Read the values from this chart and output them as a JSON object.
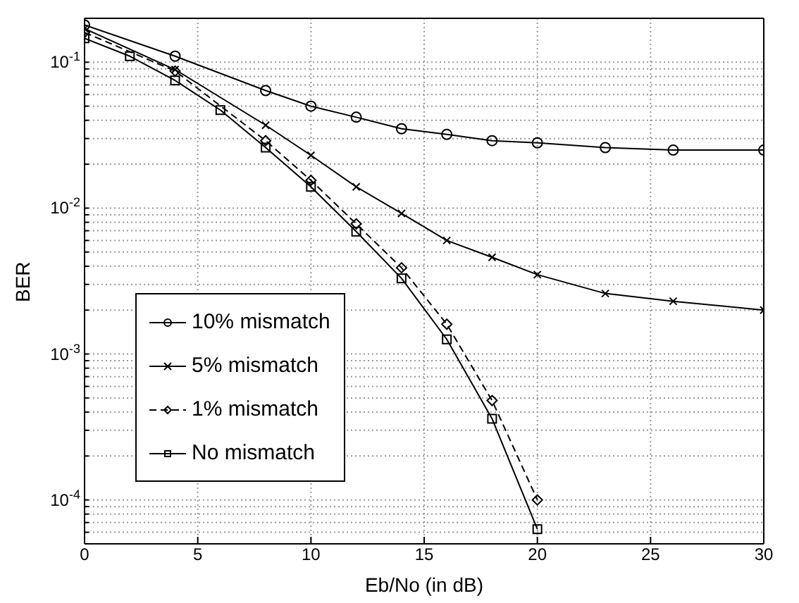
{
  "chart_data": {
    "type": "line",
    "xlabel": "Eb/No (in dB)",
    "ylabel": "BER",
    "log": "y",
    "grid": true,
    "legend": "bottom left",
    "xlim": [
      0,
      30
    ],
    "xticks": [
      0,
      5,
      10,
      15,
      20,
      25,
      30
    ],
    "ylim": [
      5e-05,
      0.2
    ],
    "yticks": [
      {
        "value": 5e-05,
        "label": null
      },
      {
        "value": 6e-05,
        "label": null
      },
      {
        "value": 7e-05,
        "label": null
      },
      {
        "value": 8e-05,
        "label": null
      },
      {
        "value": 9e-05,
        "label": null
      },
      {
        "value": 0.0001,
        "label": "10$^{-4}$"
      },
      {
        "value": 0.0002,
        "label": null
      },
      {
        "value": 0.0003,
        "label": null
      },
      {
        "value": 0.0004,
        "label": null
      },
      {
        "value": 0.0005,
        "label": null
      },
      {
        "value": 0.0006,
        "label": null
      },
      {
        "value": 0.0007,
        "label": null
      },
      {
        "value": 0.0008,
        "label": null
      },
      {
        "value": 0.0009,
        "label": null
      },
      {
        "value": 0.001,
        "label": "10$^{-3}$"
      },
      {
        "value": 0.002,
        "label": null
      },
      {
        "value": 0.003,
        "label": null
      },
      {
        "value": 0.004,
        "label": null
      },
      {
        "value": 0.005,
        "label": null
      },
      {
        "value": 0.006,
        "label": null
      },
      {
        "value": 0.007,
        "label": null
      },
      {
        "value": 0.008,
        "label": null
      },
      {
        "value": 0.009,
        "label": null
      },
      {
        "value": 0.01,
        "label": "10$^{-2}$"
      },
      {
        "value": 0.02,
        "label": null
      },
      {
        "value": 0.03,
        "label": null
      },
      {
        "value": 0.04,
        "label": null
      },
      {
        "value": 0.05,
        "label": null
      },
      {
        "value": 0.06,
        "label": null
      },
      {
        "value": 0.07,
        "label": null
      },
      {
        "value": 0.08,
        "label": null
      },
      {
        "value": 0.09,
        "label": null
      },
      {
        "value": 0.1,
        "label": "10$^{-1}$"
      },
      {
        "value": 0.2,
        "label": null
      }
    ],
    "series": [
      {
        "name": "10% mismatch",
        "color": "#000000",
        "marker": "circle",
        "line_style": "solid",
        "x": [
          0,
          4,
          8,
          10,
          12,
          14,
          16,
          18,
          20,
          23,
          26,
          30
        ],
        "values": [
          0.18,
          0.11,
          0.064,
          0.05,
          0.042,
          0.035,
          0.032,
          0.029,
          0.028,
          0.026,
          0.025,
          0.025
        ]
      },
      {
        "name": "5% mismatch",
        "color": "#000000",
        "marker": "cross",
        "line_style": "solid",
        "x": [
          0,
          4,
          8,
          10,
          12,
          14,
          16,
          18,
          20,
          23,
          26,
          30
        ],
        "values": [
          0.17,
          0.089,
          0.037,
          0.023,
          0.014,
          0.0092,
          0.006,
          0.0046,
          0.0035,
          0.0026,
          0.0023,
          0.002
        ]
      },
      {
        "name": "1% mismatch",
        "color": "#000000",
        "marker": "diamond",
        "line_style": "dashed",
        "x": [
          0,
          4,
          8,
          10,
          12,
          14,
          16,
          18,
          20
        ],
        "values": [
          0.16,
          0.087,
          0.029,
          0.0155,
          0.0078,
          0.0039,
          0.0016,
          0.00048,
          0.0001
        ]
      },
      {
        "name": "No mismatch",
        "color": "#000000",
        "marker": "square",
        "line_style": "solid",
        "x": [
          0,
          2,
          4,
          6,
          8,
          10,
          12,
          14,
          16,
          18,
          20
        ],
        "values": [
          0.146,
          0.11,
          0.075,
          0.047,
          0.026,
          0.014,
          0.0069,
          0.0033,
          0.00126,
          0.00036,
          6.3e-05
        ]
      }
    ]
  }
}
